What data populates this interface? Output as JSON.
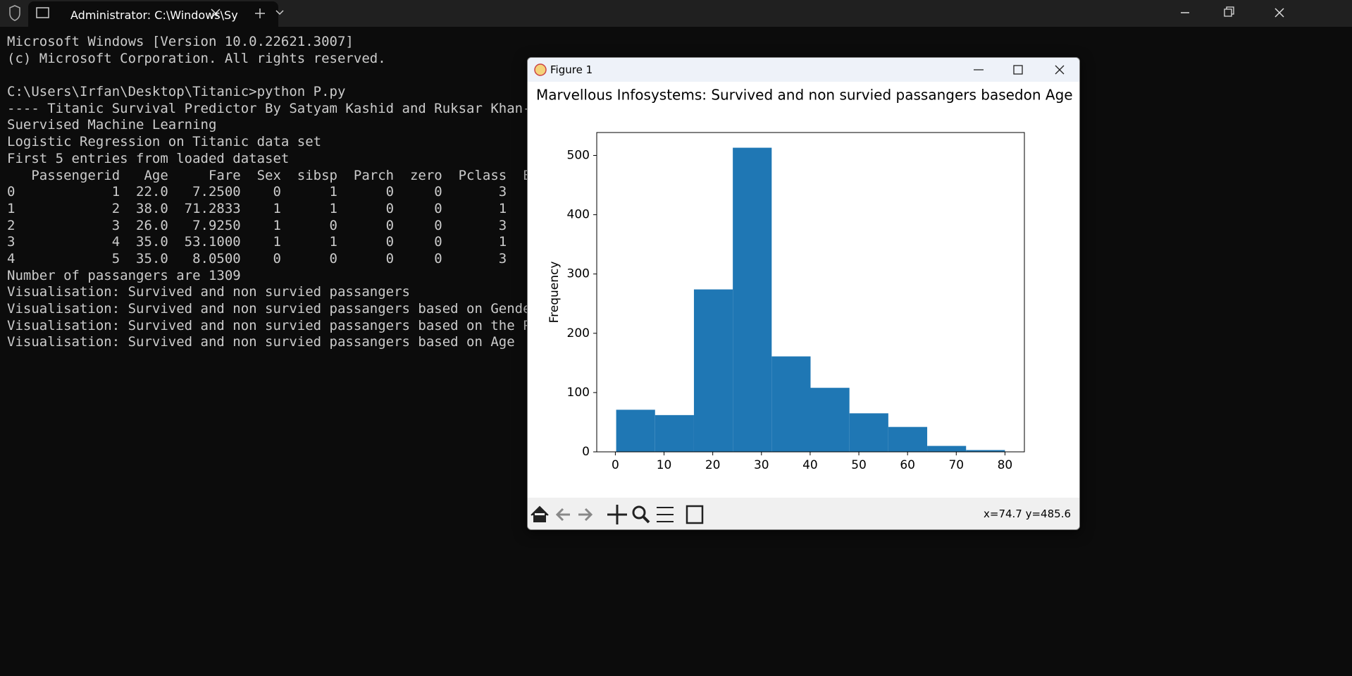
{
  "tab": {
    "title": "Administrator: C:\\Windows\\Sy"
  },
  "terminal": {
    "blocks": [
      [
        "Microsoft Windows [Version 10.0.22621.3007]",
        "(c) Microsoft Corporation. All rights reserved."
      ],
      [
        "C:\\Users\\Irfan\\Desktop\\Titanic>python P.py",
        "---- Titanic Survival Predictor By Satyam Kashid and Ruksar Khan-",
        "Suervised Machine Learning",
        "Logistic Regression on Titanic data set",
        "First 5 entries from loaded dataset",
        "   Passengerid   Age     Fare  Sex  sibsp  Parch  zero  Pclass  E",
        "0            1  22.0   7.2500    0      1      0     0       3",
        "1            2  38.0  71.2833    1      1      0     0       1",
        "2            3  26.0   7.9250    1      0      0     0       3",
        "3            4  35.0  53.1000    1      1      0     0       1",
        "4            5  35.0   8.0500    0      0      0     0       3",
        "Number of passangers are 1309",
        "Visualisation: Survived and non survied passangers",
        "Visualisation: Survived and non survied passangers based on Gende",
        "Visualisation: Survived and non survied passangers based on the P",
        "Visualisation: Survived and non survied passangers based on Age"
      ]
    ]
  },
  "figure": {
    "title": "Figure 1",
    "status": "x=74.7 y=485.6"
  },
  "chart_data": {
    "type": "histogram",
    "title": "Marvellous Infosystems: Survived and non survied passangers basedon Age",
    "y_label": "Frequency",
    "bins": [
      0.17,
      8.153,
      16.136,
      24.119,
      32.102,
      40.085,
      48.068,
      56.051,
      64.034,
      72.017,
      80
    ],
    "values": [
      71,
      62,
      274,
      513,
      161,
      108,
      65,
      42,
      10,
      3
    ],
    "color": "#1f77b4",
    "xlim": [
      -3.82,
      83.99
    ],
    "xticks": [
      0,
      10,
      20,
      30,
      40,
      50,
      60,
      70,
      80
    ],
    "ylim": [
      0,
      538.65
    ],
    "yticks": [
      0,
      100,
      200,
      300,
      400,
      500
    ]
  }
}
